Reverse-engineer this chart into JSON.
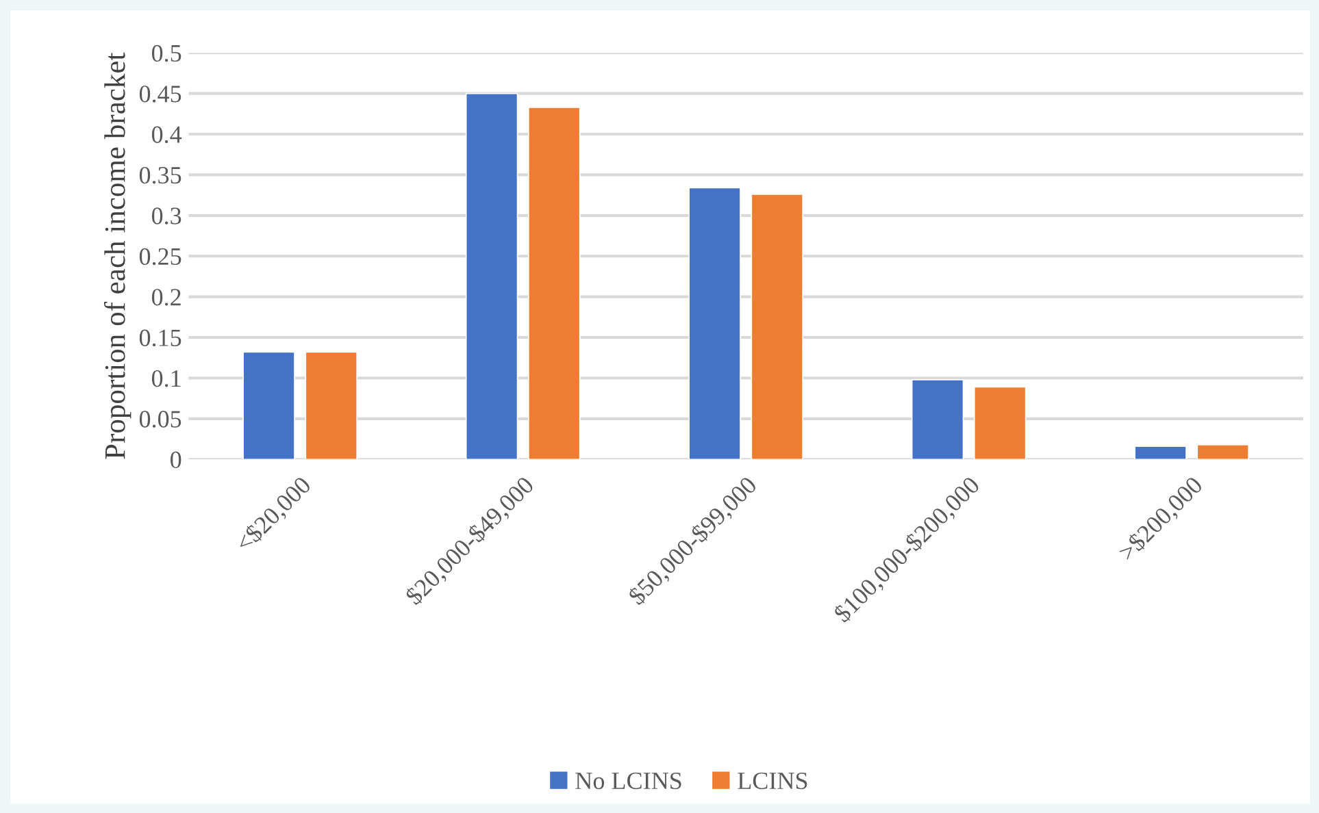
{
  "chart_data": {
    "type": "bar",
    "ylabel": "Proportion of each income bracket",
    "categories": [
      "<$20,000",
      "$20,000-$49,000",
      "$50,000-$99,000",
      "$100,000-$200,000",
      ">$200,000"
    ],
    "series": [
      {
        "name": "No LCINS",
        "color": "#4472c4",
        "values": [
          0.132,
          0.45,
          0.334,
          0.098,
          0.016
        ]
      },
      {
        "name": "LCINS",
        "color": "#ed7d31",
        "values": [
          0.132,
          0.433,
          0.326,
          0.089,
          0.018
        ]
      }
    ],
    "ylim": [
      0,
      0.5
    ],
    "yticks": [
      0,
      0.05,
      0.1,
      0.15,
      0.2,
      0.25,
      0.3,
      0.35,
      0.4,
      0.45,
      0.5
    ],
    "grid": "y",
    "legend": "bottom"
  }
}
